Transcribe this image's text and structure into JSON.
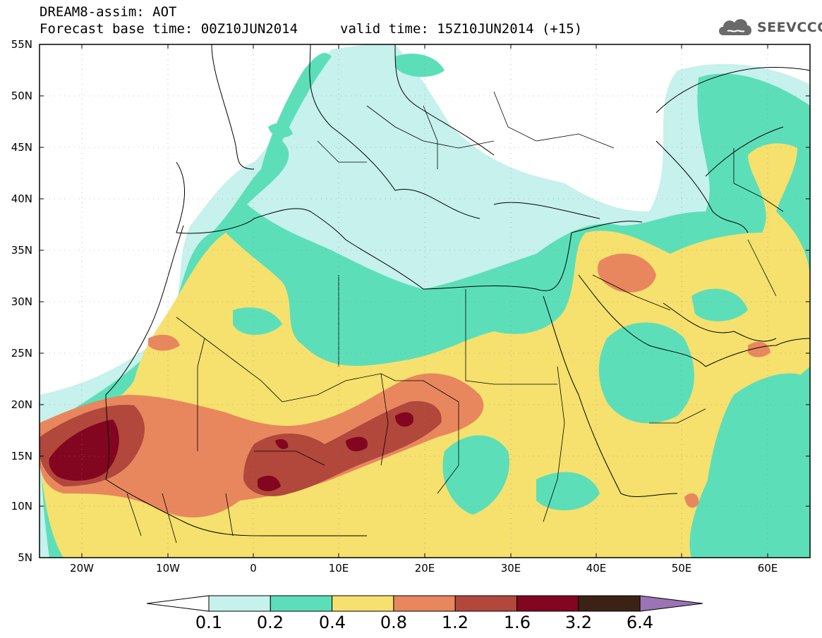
{
  "header": {
    "title": "DREAM8-assim: AOT",
    "base_time": "Forecast base time: 00Z10JUN2014",
    "valid_time": "valid time: 15Z10JUN2014 (+15)"
  },
  "logo": {
    "text": "SEEVCCC",
    "icon": "cloud-logo-icon"
  },
  "map": {
    "lat_labels": [
      "55N",
      "50N",
      "45N",
      "40N",
      "35N",
      "30N",
      "25N",
      "20N",
      "15N",
      "10N",
      "5N"
    ],
    "lon_labels": [
      "20W",
      "10W",
      "0",
      "10E",
      "20E",
      "30E",
      "40E",
      "50E",
      "60E"
    ],
    "lat_range": [
      5,
      55
    ],
    "lon_range": [
      -25,
      65
    ]
  },
  "colorbar": {
    "labels": [
      "0.1",
      "0.2",
      "0.4",
      "0.8",
      "1.2",
      "1.6",
      "3.2",
      "6.4"
    ],
    "colors": [
      "#ffffff",
      "#c6f1ec",
      "#5cdfb8",
      "#f6e06e",
      "#e8875e",
      "#b2473c",
      "#82061f",
      "#3c2214",
      "#9c73b4"
    ]
  }
}
